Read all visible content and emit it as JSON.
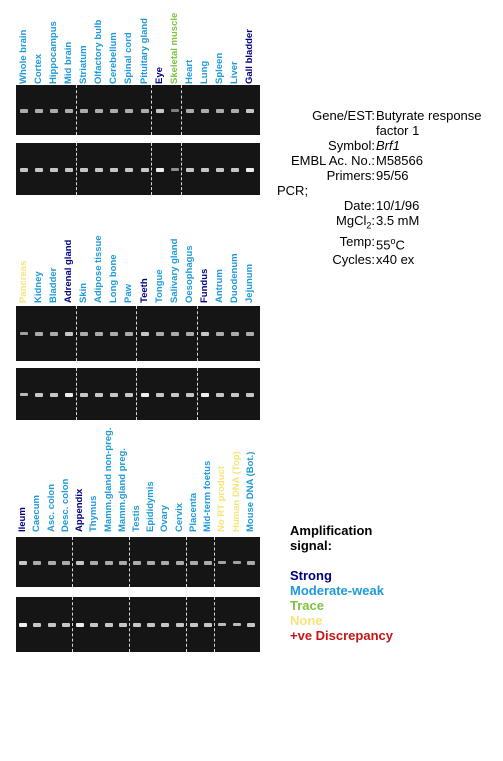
{
  "colors": {
    "strong": "#000080",
    "moderate": "#1e9ad8",
    "trace": "#7fc241",
    "none": "#f6e47a",
    "discrepancy": "#c81414"
  },
  "gene_info": {
    "gene_label": "Gene/EST:",
    "gene_value": "Butyrate response factor 1",
    "symbol_label": "Symbol:",
    "symbol_value": "Brf1",
    "embl_label": "EMBL Ac. No.:",
    "embl_value": "M58566",
    "primers_label": "Primers:",
    "primers_value": "95/56",
    "pcr_label": "PCR;",
    "date_label": "Date:",
    "date_value": "10/1/96",
    "mgcl2_label_main": "MgCl",
    "mgcl2_label_sub": "2",
    "mgcl2_label_end": ":",
    "mgcl2_value": "3.5 mM",
    "temp_label": "Temp:",
    "temp_value_num": "55",
    "temp_value_sup": "o",
    "temp_value_unit": "C",
    "cycles_label": "Cycles:",
    "cycles_value": "x40 ex"
  },
  "legend": {
    "title_line1": "Amplification",
    "title_line2": "signal:",
    "items": [
      {
        "label": "Strong",
        "color": "#000080"
      },
      {
        "label": "Moderate-weak",
        "color": "#1e9ad8"
      },
      {
        "label": "Trace",
        "color": "#7fc241"
      },
      {
        "label": "None",
        "color": "#f6e47a"
      },
      {
        "label": "+ve Discrepancy",
        "color": "#c81414"
      }
    ]
  },
  "panels": [
    {
      "tissues": [
        {
          "name": "Whole brain",
          "level": "moderate"
        },
        {
          "name": "Cortex",
          "level": "moderate"
        },
        {
          "name": "Hippocampus",
          "level": "moderate"
        },
        {
          "name": "Mid brain",
          "level": "moderate"
        },
        {
          "name": "Striatum",
          "level": "moderate"
        },
        {
          "name": "Olfactory bulb",
          "level": "moderate"
        },
        {
          "name": "Cerebellum",
          "level": "moderate"
        },
        {
          "name": "Spinal cord",
          "level": "moderate"
        },
        {
          "name": "Pituitary gland",
          "level": "moderate"
        },
        {
          "name": "Eye",
          "level": "strong"
        },
        {
          "name": "Skeletal muscle",
          "level": "trace"
        },
        {
          "name": "Heart",
          "level": "moderate"
        },
        {
          "name": "Lung",
          "level": "moderate"
        },
        {
          "name": "Spleen",
          "level": "moderate"
        },
        {
          "name": "Liver",
          "level": "moderate"
        },
        {
          "name": "Gall bladder",
          "level": "strong"
        }
      ],
      "separators_after": [
        3,
        8,
        10
      ]
    },
    {
      "tissues": [
        {
          "name": "Pancreas",
          "level": "none"
        },
        {
          "name": "Kidney",
          "level": "moderate"
        },
        {
          "name": "Bladder",
          "level": "moderate"
        },
        {
          "name": "Adrenal gland",
          "level": "strong"
        },
        {
          "name": "Skin",
          "level": "moderate"
        },
        {
          "name": "Adipose tissue",
          "level": "moderate"
        },
        {
          "name": "Long bone",
          "level": "moderate"
        },
        {
          "name": "Paw",
          "level": "moderate"
        },
        {
          "name": "Teeth",
          "level": "strong"
        },
        {
          "name": "Tongue",
          "level": "moderate"
        },
        {
          "name": "Salivary gland",
          "level": "moderate"
        },
        {
          "name": "Oesophagus",
          "level": "moderate"
        },
        {
          "name": "Fundus",
          "level": "strong"
        },
        {
          "name": "Antrum",
          "level": "moderate"
        },
        {
          "name": "Duodenum",
          "level": "moderate"
        },
        {
          "name": "Jejunum",
          "level": "moderate"
        }
      ],
      "separators_after": [
        3,
        7,
        11
      ]
    },
    {
      "tissues": [
        {
          "name": "Ileum",
          "level": "strong"
        },
        {
          "name": "Caecum",
          "level": "moderate"
        },
        {
          "name": "Asc. colon",
          "level": "moderate"
        },
        {
          "name": "Desc. colon",
          "level": "moderate"
        },
        {
          "name": "Appendix",
          "level": "strong"
        },
        {
          "name": "Thymus",
          "level": "moderate"
        },
        {
          "name": "Mamm.gland non-preg.",
          "level": "moderate"
        },
        {
          "name": "Mamm.gland preg.",
          "level": "moderate"
        },
        {
          "name": "Testis",
          "level": "moderate"
        },
        {
          "name": "Epididymis",
          "level": "moderate"
        },
        {
          "name": "Ovary",
          "level": "moderate"
        },
        {
          "name": "Cervix",
          "level": "moderate"
        },
        {
          "name": "Placenta",
          "level": "moderate"
        },
        {
          "name": "Mid-term foetus",
          "level": "moderate"
        },
        {
          "name": "No RT product",
          "level": "none"
        },
        {
          "name": "Human DNA (Top)",
          "level": "none"
        },
        {
          "name": "Mouse DNA (Bot.)",
          "level": "moderate"
        }
      ],
      "separators_after": [
        3,
        7,
        11,
        13
      ]
    }
  ]
}
